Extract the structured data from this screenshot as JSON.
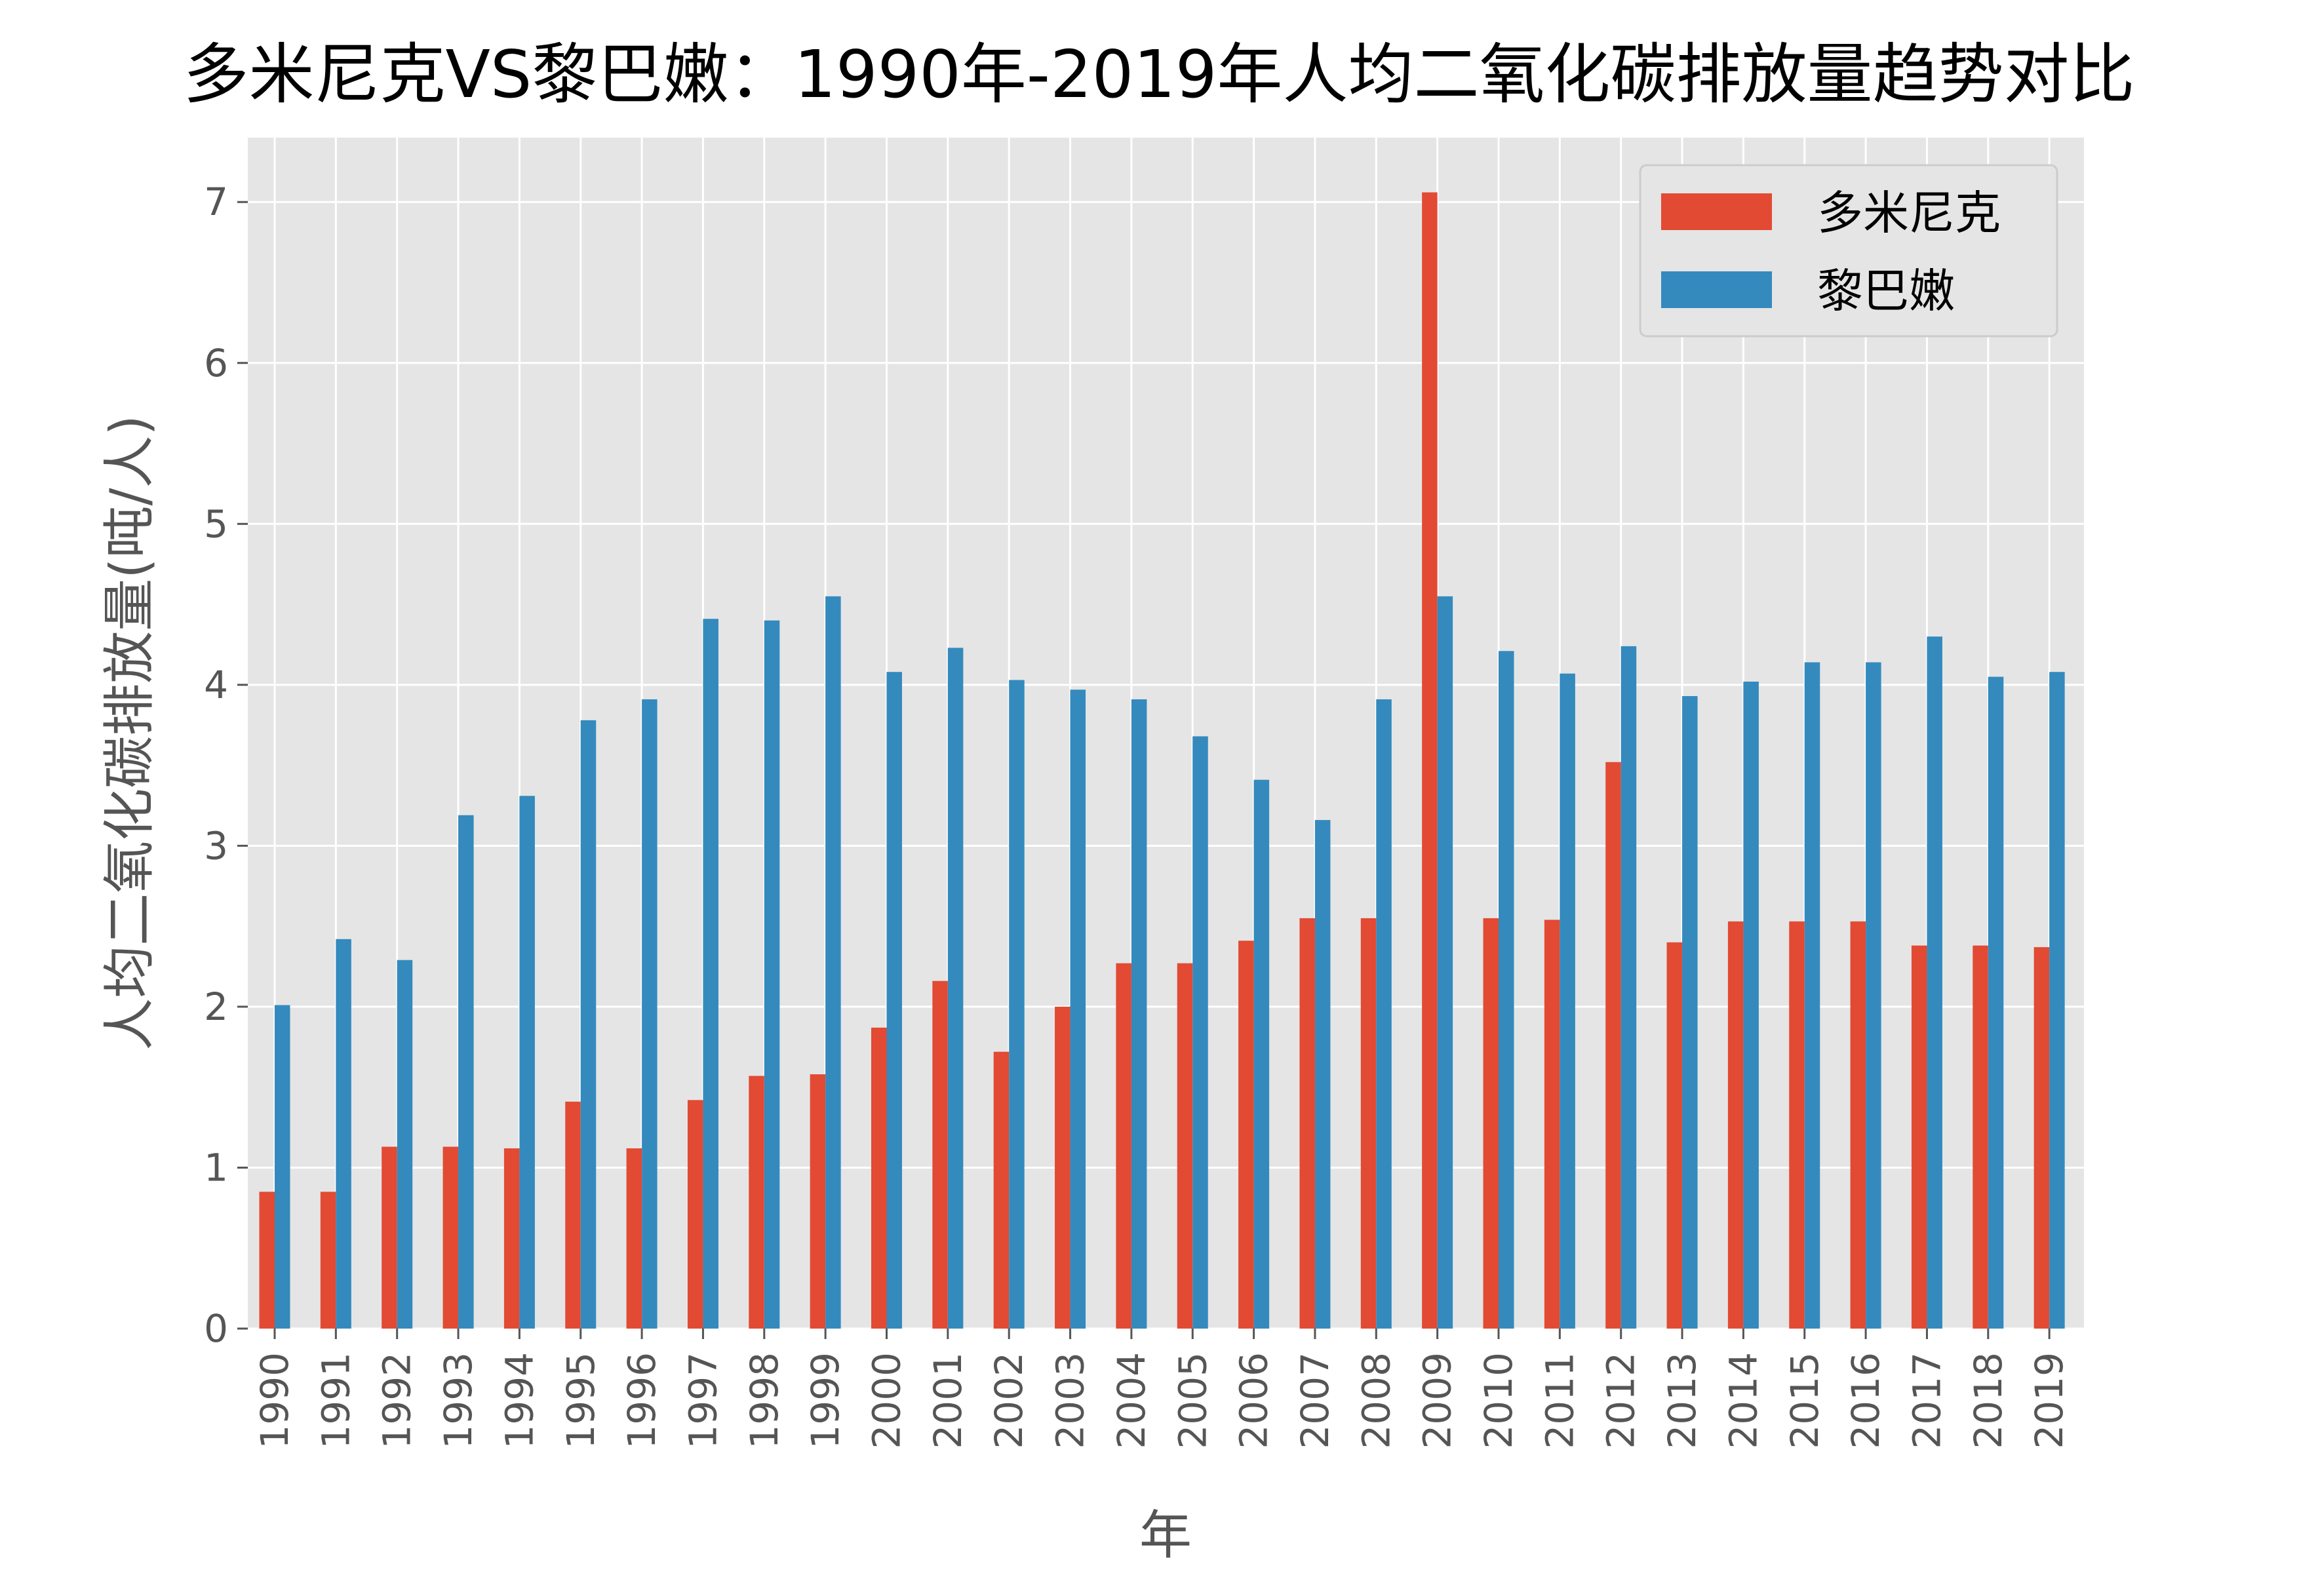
{
  "chart_data": {
    "type": "bar",
    "title": "多米尼克VS黎巴嫩：1990年-2019年人均二氧化碳排放量趋势对比",
    "xlabel": "年",
    "ylabel": "人均二氧化碳排放量(吨/人)",
    "categories": [
      "1990",
      "1991",
      "1992",
      "1993",
      "1994",
      "1995",
      "1996",
      "1997",
      "1998",
      "1999",
      "2000",
      "2001",
      "2002",
      "2003",
      "2004",
      "2005",
      "2006",
      "2007",
      "2008",
      "2009",
      "2010",
      "2011",
      "2012",
      "2013",
      "2014",
      "2015",
      "2016",
      "2017",
      "2018",
      "2019"
    ],
    "series": [
      {
        "name": "多米尼克",
        "color": "#E24A33",
        "values": [
          0.85,
          0.85,
          1.13,
          1.13,
          1.12,
          1.41,
          1.12,
          1.42,
          1.57,
          1.58,
          1.87,
          2.16,
          1.72,
          2.0,
          2.27,
          2.27,
          2.41,
          2.55,
          2.55,
          7.06,
          2.55,
          2.54,
          3.52,
          2.4,
          2.53,
          2.53,
          2.53,
          2.38,
          2.38,
          2.37
        ]
      },
      {
        "name": "黎巴嫩",
        "color": "#348ABD",
        "values": [
          2.01,
          2.42,
          2.29,
          3.19,
          3.31,
          3.78,
          3.91,
          4.41,
          4.4,
          4.55,
          4.08,
          4.23,
          4.03,
          3.97,
          3.91,
          3.68,
          3.41,
          3.16,
          3.91,
          4.55,
          4.21,
          4.07,
          4.24,
          3.93,
          4.02,
          4.14,
          4.14,
          4.3,
          4.05,
          4.08
        ]
      }
    ],
    "ylim": [
      0,
      7.4
    ],
    "yticks": [
      "0",
      "1",
      "2",
      "3",
      "4",
      "5",
      "6",
      "7"
    ],
    "grid": true,
    "legend_position": "top-right",
    "background": "#E5E5E5",
    "grid_color": "#FFFFFF"
  }
}
